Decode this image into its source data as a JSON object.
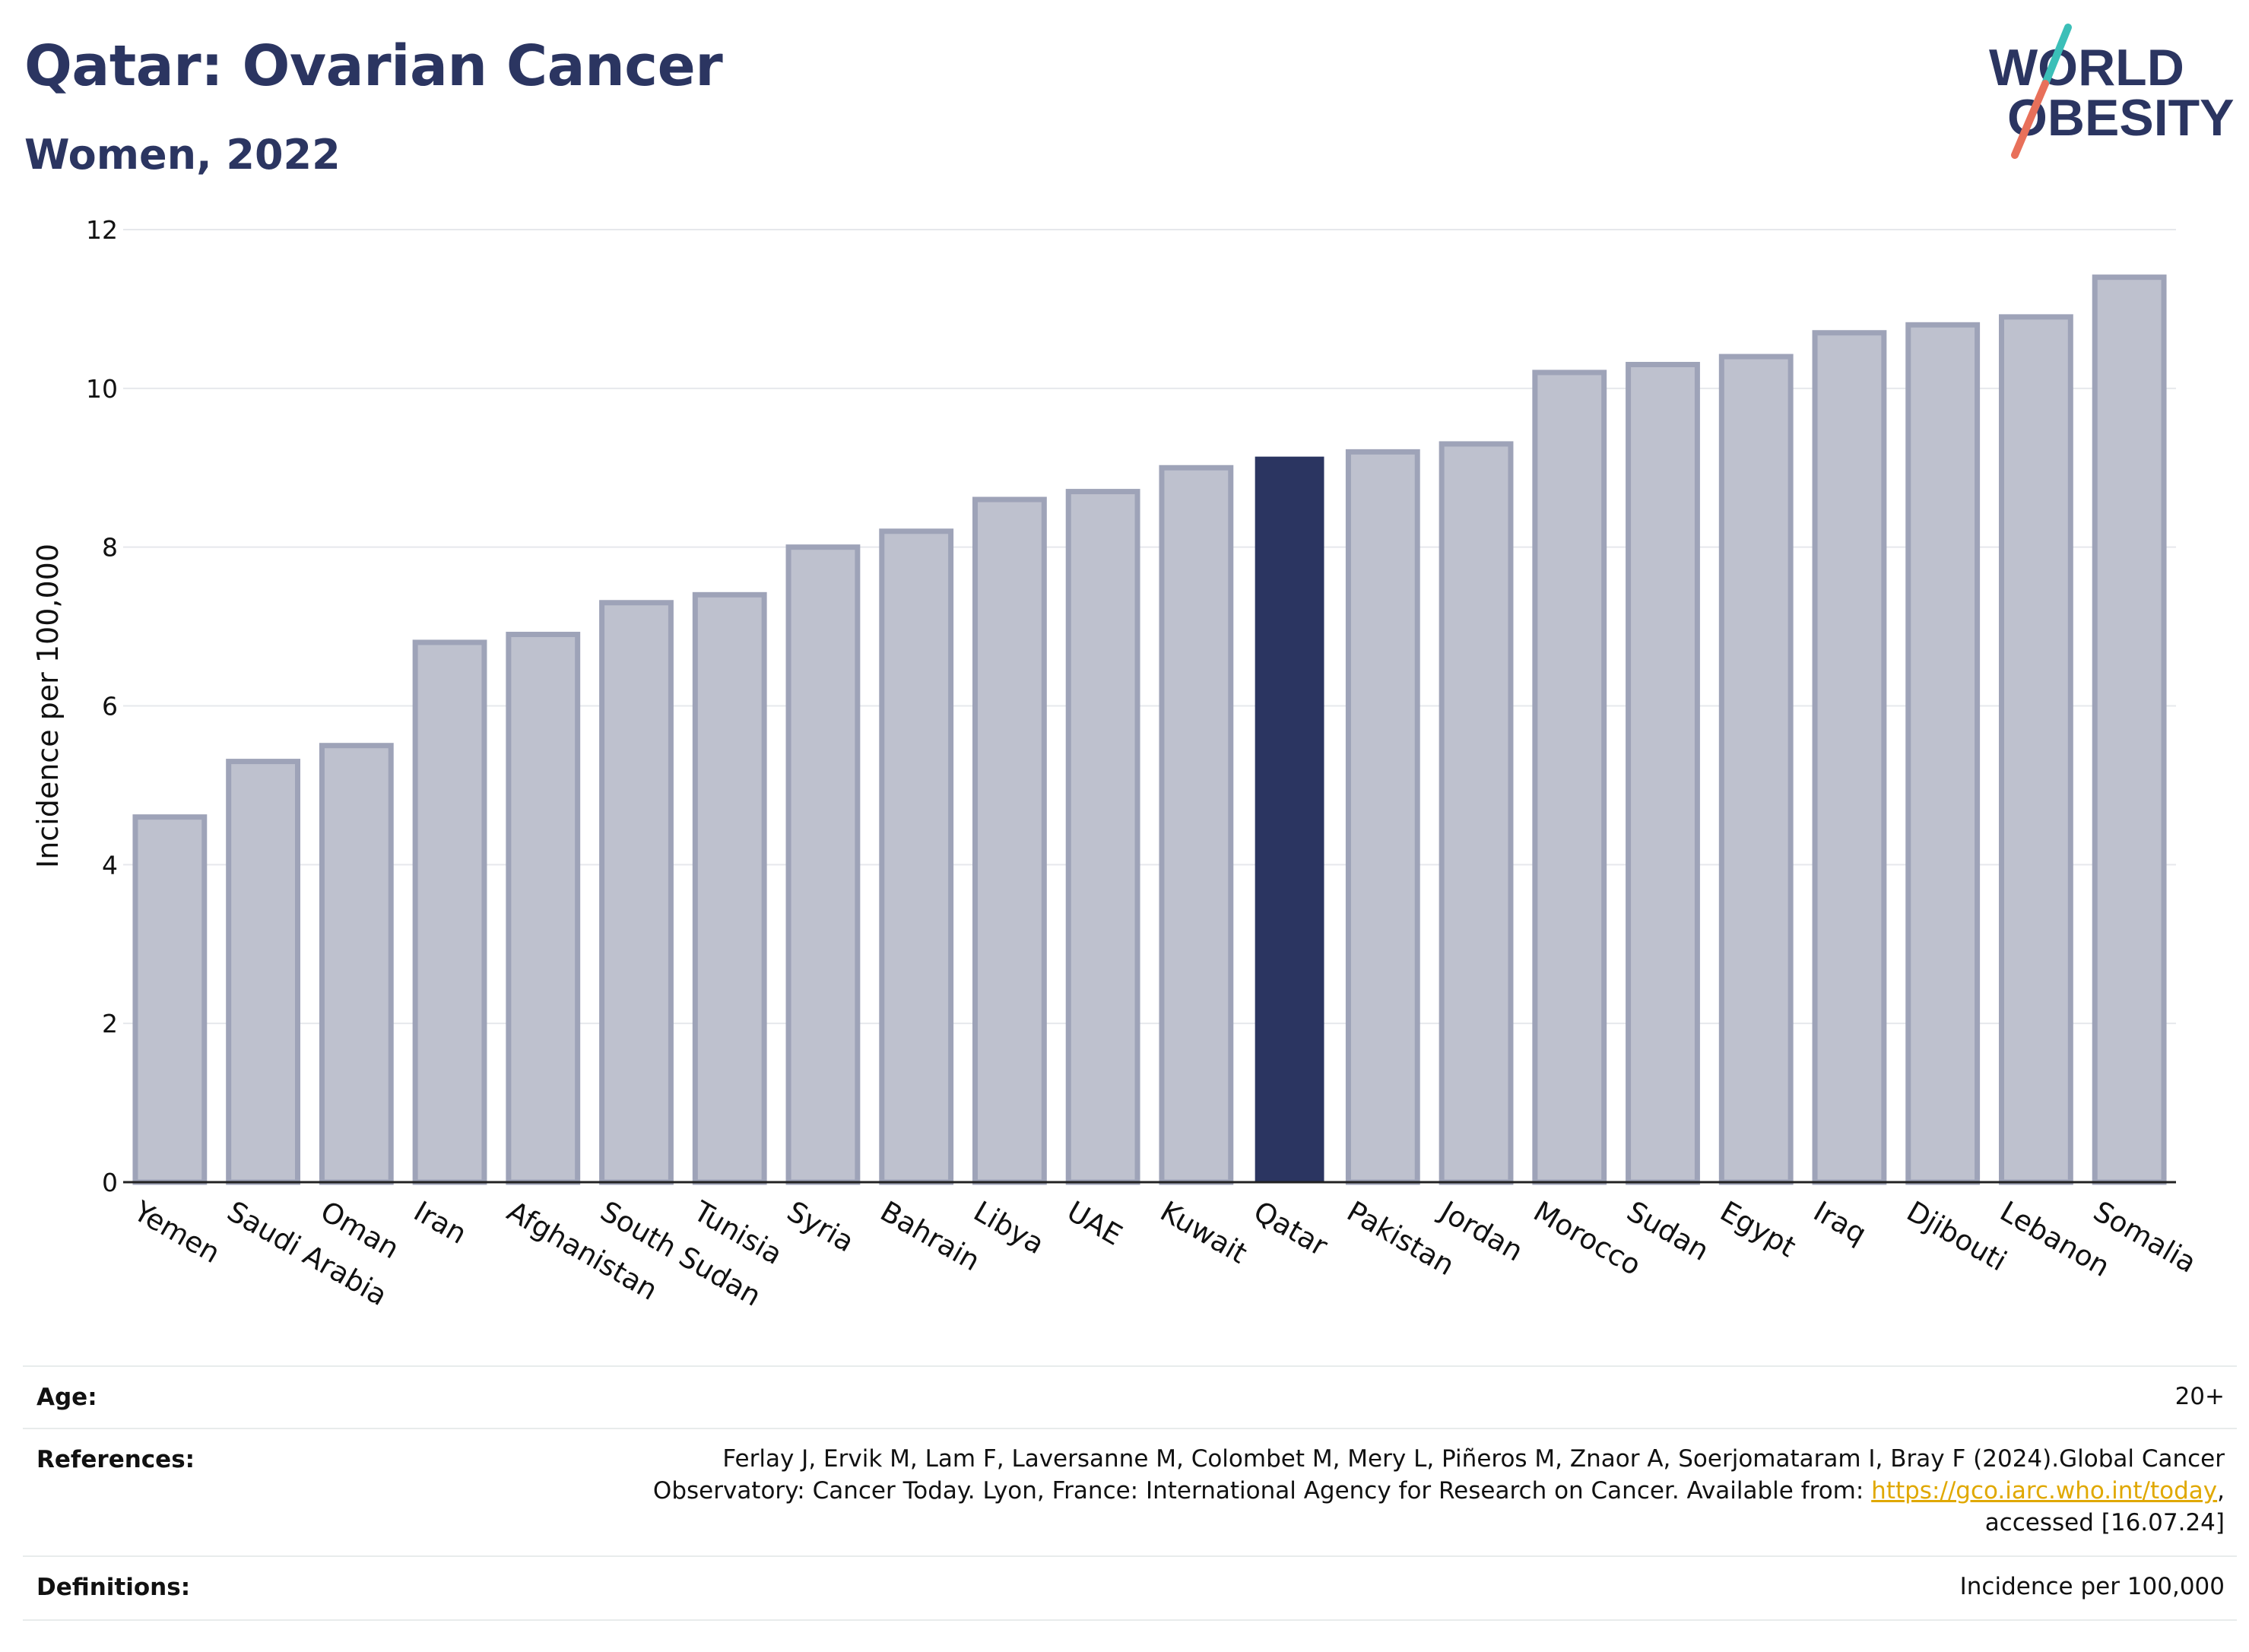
{
  "header": {
    "title": "Qatar: Ovarian Cancer",
    "subtitle": "Women, 2022",
    "logo_line1": "WORLD",
    "logo_line2": "OBESITY"
  },
  "colors": {
    "highlight": "#2b3561",
    "bar_fill": "#bec1ce",
    "bar_stroke": "#9ea3b8",
    "title": "#2b3561",
    "link": "#e0a800",
    "logo_teal": "#3bbfb8",
    "logo_coral": "#e8705a"
  },
  "chart_data": {
    "type": "bar",
    "ylabel": "Incidence per 100,000",
    "ylim": [
      0,
      12
    ],
    "yticks": [
      0,
      2,
      4,
      6,
      8,
      10,
      12
    ],
    "grid": true,
    "highlight": "Qatar",
    "categories": [
      "Yemen",
      "Saudi Arabia",
      "Oman",
      "Iran",
      "Afghanistan",
      "South Sudan",
      "Tunisia",
      "Syria",
      "Bahrain",
      "Libya",
      "UAE",
      "Kuwait",
      "Qatar",
      "Pakistan",
      "Jordan",
      "Morocco",
      "Sudan",
      "Egypt",
      "Iraq",
      "Djibouti",
      "Lebanon",
      "Somalia"
    ],
    "values": [
      4.6,
      5.3,
      5.5,
      6.8,
      6.9,
      7.3,
      7.4,
      8.0,
      8.2,
      8.6,
      8.7,
      9.0,
      9.14,
      9.2,
      9.3,
      10.2,
      10.3,
      10.4,
      10.7,
      10.8,
      10.9,
      11.4
    ]
  },
  "footer": {
    "age_label": "Age:",
    "age_value": "20+",
    "references_label": "References:",
    "references_line1": "Ferlay J, Ervik M, Lam F, Laversanne M, Colombet M, Mery L, Piñeros M, Znaor A, Soerjomataram I, Bray F (2024).Global Cancer",
    "references_line2_pre": "Observatory: Cancer Today. Lyon, France: International Agency for Research on Cancer. Available from: ",
    "references_link": "https://gco.iarc.who.int/today",
    "references_line2_post": ",",
    "references_line3": "accessed [16.07.24]",
    "definitions_label": "Definitions:",
    "definitions_value": "Incidence per 100,000"
  }
}
